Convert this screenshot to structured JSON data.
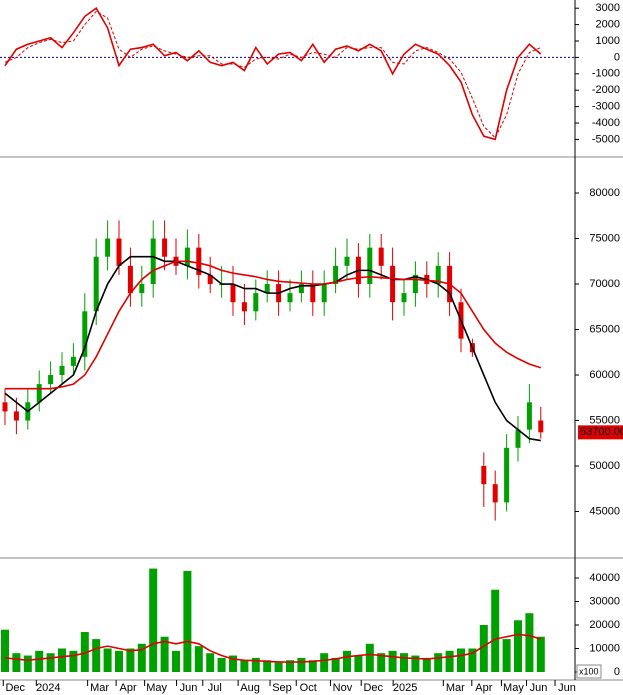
{
  "chart_data": [
    {
      "type": "line",
      "ylim": [
        -5950,
        3500
      ],
      "yticks": [
        3000,
        2000,
        1000,
        0,
        -1000,
        -2000,
        -3000,
        -4000,
        -5000
      ],
      "zero_line": 0,
      "series": [
        {
          "color": "#e00000",
          "dash": false,
          "values": [
            -500,
            500,
            800,
            1000,
            1200,
            600,
            1500,
            2500,
            3000,
            1800,
            -500,
            500,
            600,
            800,
            100,
            300,
            -200,
            400,
            -300,
            -500,
            -300,
            -800,
            600,
            -400,
            200,
            300,
            -200,
            800,
            -300,
            500,
            700,
            400,
            800,
            400,
            -1000,
            200,
            800,
            500,
            200,
            -500,
            -1500,
            -3500,
            -4800,
            -5000,
            -2000,
            0,
            800,
            200
          ]
        },
        {
          "color": "#e00000",
          "dash": true,
          "values": [
            -300,
            0,
            600,
            900,
            1100,
            900,
            1000,
            2000,
            2800,
            2400,
            500,
            0,
            500,
            700,
            400,
            200,
            0,
            100,
            100,
            -400,
            -400,
            -600,
            -100,
            0,
            -100,
            200,
            0,
            300,
            200,
            0,
            600,
            500,
            600,
            600,
            -300,
            -400,
            400,
            600,
            300,
            -100,
            -900,
            -2500,
            -4200,
            -4900,
            -3500,
            -1000,
            300,
            600
          ]
        }
      ]
    },
    {
      "type": "candlestick",
      "ylim": [
        40000,
        83850
      ],
      "yticks": [
        45000,
        50000,
        55000,
        60000,
        65000,
        70000,
        75000,
        80000
      ],
      "up_color": "#00a000",
      "down_color": "#e00000",
      "last_price_label": "53700.00",
      "last_price": 53700,
      "open": [
        57000,
        56000,
        55000,
        57000,
        59000,
        60000,
        61000,
        62000,
        67000,
        73000,
        75000,
        72000,
        69000,
        70000,
        75000,
        73000,
        72000,
        74000,
        71000,
        70000,
        70000,
        68000,
        67000,
        69000,
        70000,
        68000,
        69000,
        70000,
        68000,
        70000,
        72000,
        73000,
        70000,
        74000,
        72000,
        68000,
        69000,
        71000,
        70000,
        72000,
        68000,
        63500,
        50000,
        48000,
        46000,
        52000,
        54000,
        55000
      ],
      "high": [
        58500,
        57500,
        58500,
        60500,
        61500,
        62500,
        63500,
        69000,
        75000,
        77000,
        77000,
        74000,
        72000,
        77000,
        77000,
        75000,
        76000,
        75500,
        73000,
        72000,
        72000,
        70000,
        70500,
        71500,
        71500,
        70500,
        71500,
        71500,
        71500,
        74000,
        75000,
        74500,
        75500,
        75500,
        74000,
        70500,
        72500,
        72500,
        73500,
        73500,
        69500,
        64000,
        51500,
        49500,
        53500,
        55500,
        59000,
        56500
      ],
      "low": [
        54500,
        53500,
        54000,
        56000,
        58000,
        59000,
        60000,
        60500,
        65500,
        71500,
        71000,
        67500,
        67500,
        68500,
        71500,
        71000,
        70500,
        69500,
        69000,
        68500,
        66500,
        65500,
        66000,
        68000,
        66500,
        67000,
        68000,
        66500,
        66500,
        69000,
        70500,
        68500,
        68500,
        70500,
        66000,
        66500,
        67500,
        68500,
        68500,
        66500,
        62500,
        62000,
        45500,
        44000,
        45000,
        50500,
        52500,
        53000
      ],
      "close": [
        56000,
        55000,
        57000,
        59000,
        60000,
        61000,
        62000,
        67000,
        73000,
        75000,
        72000,
        69000,
        70000,
        75000,
        73000,
        72000,
        74000,
        71000,
        70000,
        70000,
        68000,
        67000,
        69000,
        70000,
        68000,
        69000,
        70000,
        68000,
        70000,
        72000,
        73000,
        70000,
        74000,
        72000,
        68000,
        69000,
        71000,
        70000,
        72000,
        68000,
        64000,
        62500,
        48000,
        46000,
        52000,
        54000,
        57000,
        53700
      ],
      "series": [
        {
          "color": "#000000",
          "values": [
            58000,
            57000,
            56000,
            57000,
            58000,
            59000,
            60000,
            63000,
            67000,
            70000,
            72000,
            73000,
            73000,
            73000,
            72500,
            72500,
            72000,
            71500,
            71000,
            70000,
            70000,
            69500,
            69500,
            69000,
            69000,
            69500,
            69800,
            69800,
            70000,
            70200,
            71000,
            71500,
            71500,
            71000,
            70500,
            70500,
            70800,
            70500,
            70000,
            69000,
            66000,
            63000,
            60000,
            57000,
            55000,
            54000,
            53000,
            52800
          ]
        },
        {
          "color": "#e00000",
          "values": [
            58500,
            58500,
            58500,
            58500,
            58500,
            58700,
            59000,
            60000,
            62000,
            64500,
            67000,
            69000,
            70500,
            71500,
            72000,
            72500,
            72500,
            72300,
            72000,
            71500,
            71200,
            71000,
            70800,
            70500,
            70300,
            70200,
            70100,
            70000,
            70000,
            70200,
            70500,
            70700,
            70800,
            70700,
            70600,
            70500,
            70500,
            70400,
            70300,
            70000,
            69000,
            67000,
            65000,
            63500,
            62500,
            61800,
            61200,
            60800
          ]
        }
      ]
    },
    {
      "type": "bar",
      "ylim": [
        0,
        48500
      ],
      "yticks": [
        40000,
        30000,
        20000,
        10000,
        0
      ],
      "unit_label": "x100",
      "color": "#00a000",
      "values": [
        18000,
        8000,
        7000,
        9000,
        8000,
        10000,
        9000,
        17000,
        14000,
        10000,
        9000,
        10000,
        12000,
        44000,
        15000,
        9000,
        43000,
        11000,
        8000,
        6000,
        7000,
        5000,
        6000,
        5000,
        4000,
        5000,
        6000,
        5000,
        8000,
        6000,
        9000,
        7000,
        12000,
        8000,
        9000,
        8000,
        7000,
        6000,
        8000,
        9000,
        10000,
        10000,
        20000,
        35000,
        14000,
        22000,
        25000,
        15000
      ],
      "series": [
        {
          "color": "#e00000",
          "values": [
            6000,
            5500,
            5000,
            5500,
            6000,
            6500,
            7000,
            8000,
            10000,
            11000,
            10000,
            9000,
            9500,
            12000,
            13000,
            12000,
            13000,
            12000,
            9000,
            7000,
            5500,
            5000,
            4800,
            4500,
            4300,
            4200,
            4300,
            4500,
            5000,
            5500,
            6500,
            7000,
            7500,
            7000,
            6500,
            6000,
            5800,
            5500,
            6000,
            6500,
            7000,
            8000,
            11000,
            14000,
            15000,
            16000,
            15500,
            14000
          ]
        }
      ],
      "xticks": [
        {
          "value": 0.9,
          "label": "Dec"
        },
        {
          "value": 3.8,
          "label": "2024"
        },
        {
          "value": 8.3,
          "label": "Mar"
        },
        {
          "value": 10.8,
          "label": "Apr"
        },
        {
          "value": 13.3,
          "label": "May"
        },
        {
          "value": 16.1,
          "label": "Jun"
        },
        {
          "value": 18.4,
          "label": "Jul"
        },
        {
          "value": 21.5,
          "label": "Aug"
        },
        {
          "value": 24.3,
          "label": "Sep"
        },
        {
          "value": 26.6,
          "label": "Oct"
        },
        {
          "value": 29.6,
          "label": "Nov"
        },
        {
          "value": 32.3,
          "label": "Dec"
        },
        {
          "value": 35.1,
          "label": "2025"
        },
        {
          "value": 39.5,
          "label": "Mar"
        },
        {
          "value": 42,
          "label": "Apr"
        },
        {
          "value": 44.6,
          "label": "May"
        },
        {
          "value": 46.8,
          "label": "Jun"
        },
        {
          "value": 49.3,
          "label": "Jun"
        }
      ]
    }
  ]
}
